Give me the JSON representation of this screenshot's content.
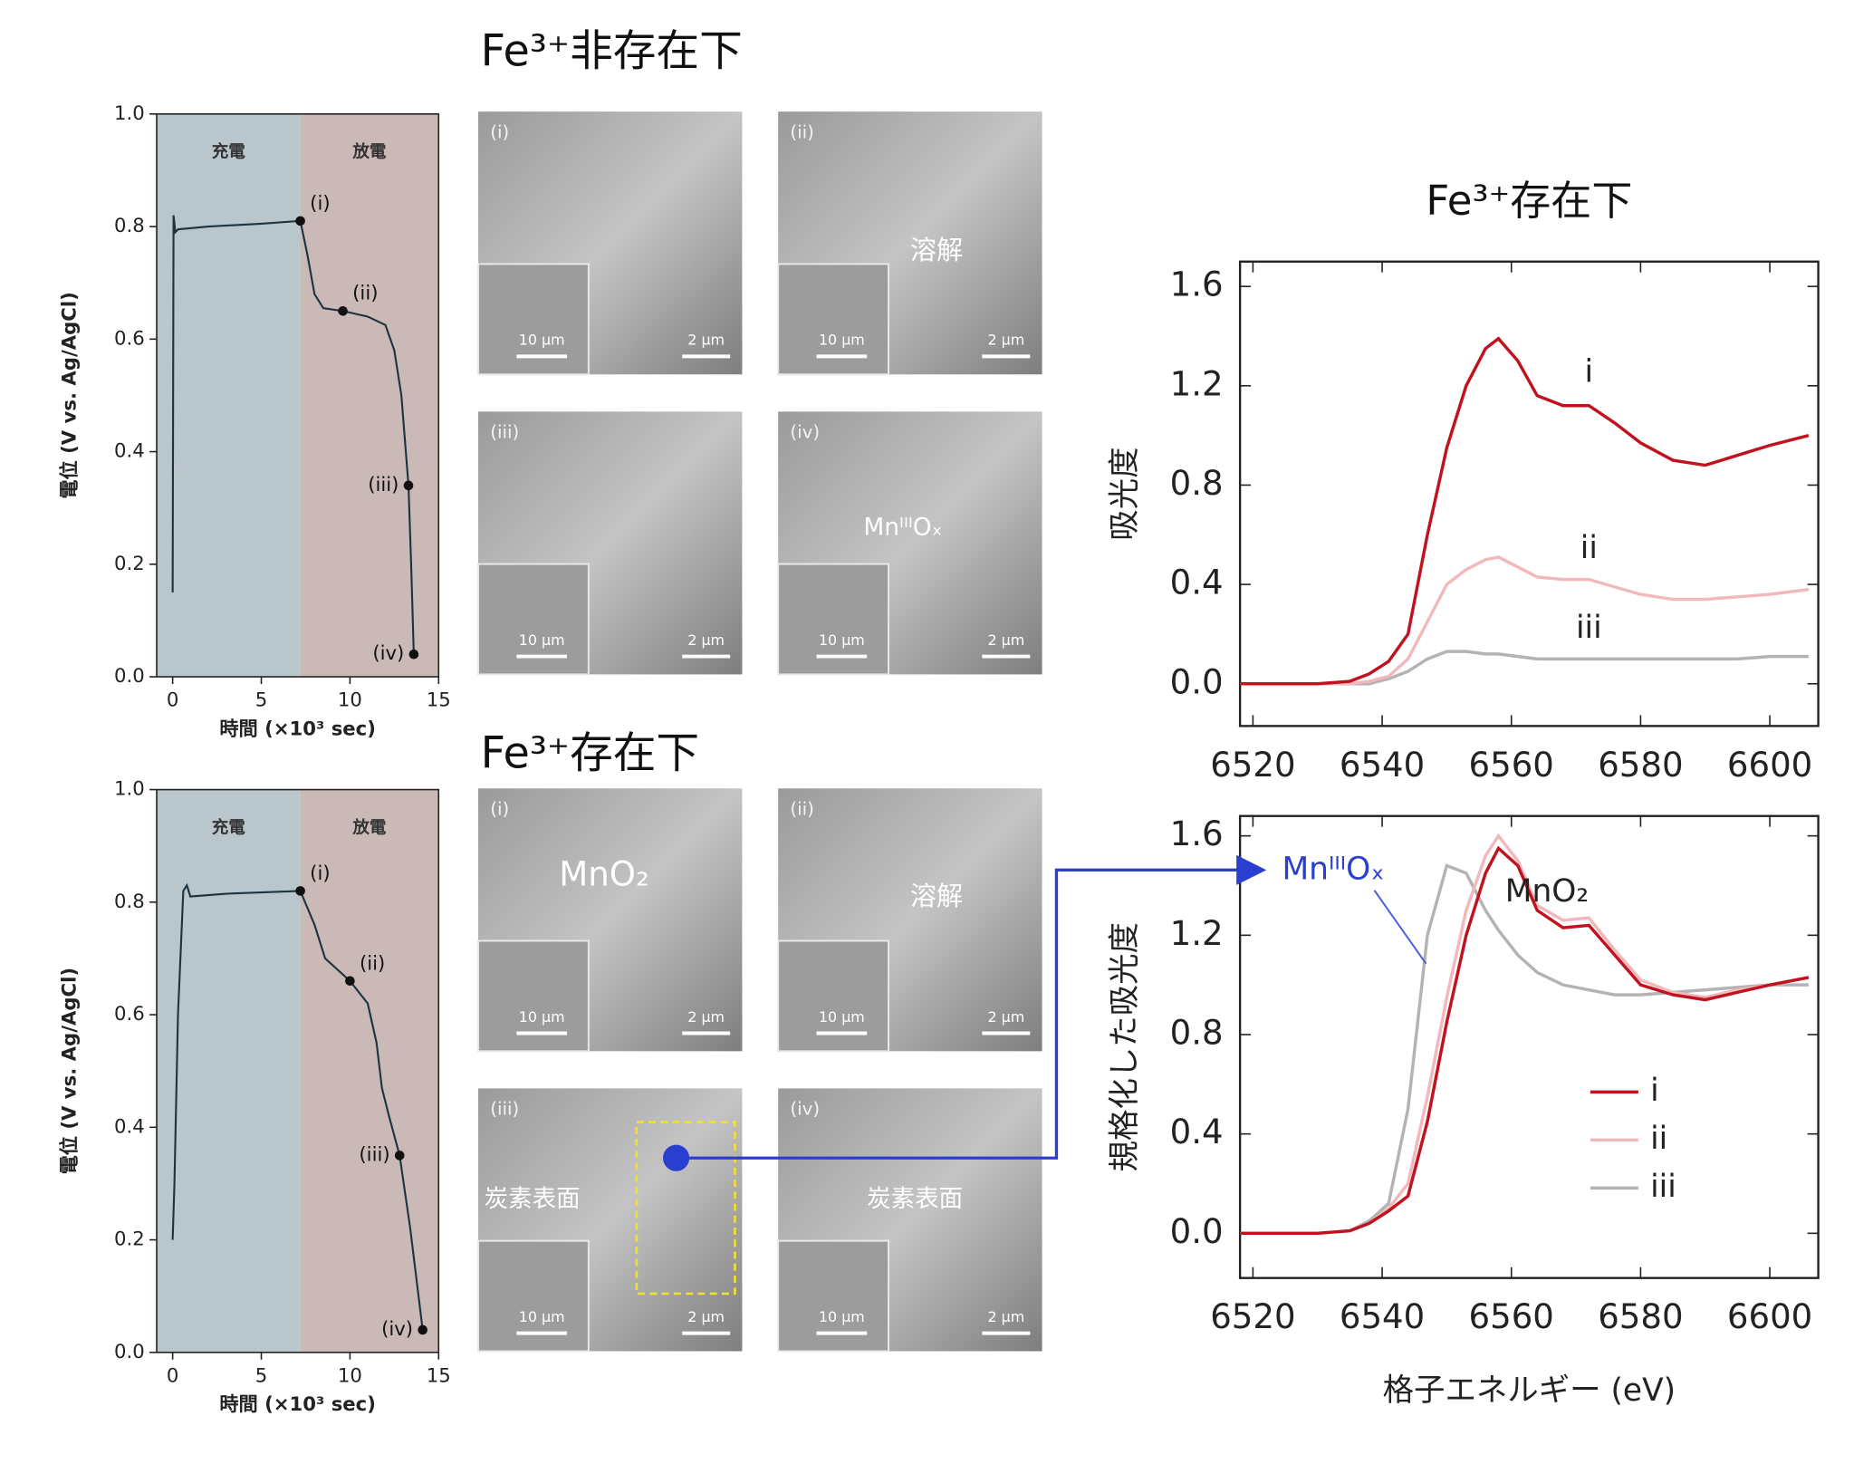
{
  "chart_data": [
    {
      "type": "line",
      "xlabel": "時間 (×10³ sec)",
      "ylabel": "電位 (V vs. Ag/AgCl)",
      "xlim": [
        -0.9,
        15
      ],
      "ylim": [
        0,
        1
      ],
      "xticks": [
        0,
        5,
        10,
        15
      ],
      "yticks": [
        {
          "value": 0,
          "label": "0.0"
        },
        0.2,
        0.4,
        0.6,
        0.8,
        {
          "value": 1,
          "label": "1.0"
        }
      ],
      "regions": [
        {
          "label": "充電",
          "start": -0.9,
          "end": 7.2,
          "color": "#b9c6cb"
        },
        {
          "label": "放電",
          "start": 7.2,
          "end": 15,
          "color": "#cbb9b8"
        }
      ],
      "x": [
        0,
        0.05,
        0.15,
        0.3,
        2,
        5,
        7.2,
        7.6,
        8,
        8.5,
        9.6,
        11,
        12,
        12.5,
        12.9,
        13.1,
        13.3,
        13.45,
        13.6
      ],
      "series": [
        {
          "color": "#1d3440",
          "values": [
            0.15,
            0.82,
            0.79,
            0.795,
            0.8,
            0.805,
            0.81,
            0.75,
            0.68,
            0.655,
            0.65,
            0.64,
            0.625,
            0.58,
            0.5,
            0.42,
            0.34,
            0.2,
            0.04
          ]
        }
      ],
      "points": {
        "x": [
          7.2,
          9.6,
          13.3,
          13.6
        ],
        "y": [
          0.81,
          0.65,
          0.34,
          0.04
        ],
        "labels": [
          "(i)",
          "(ii)",
          "(iii)",
          "(iv)"
        ]
      }
    },
    {
      "type": "line",
      "xlabel": "時間 (×10³ sec)",
      "ylabel": "電位 (V vs. Ag/AgCl)",
      "xlim": [
        -0.9,
        15
      ],
      "ylim": [
        0,
        1
      ],
      "xticks": [
        0,
        5,
        10,
        15
      ],
      "yticks": [
        {
          "value": 0,
          "label": "0.0"
        },
        0.2,
        0.4,
        0.6,
        0.8,
        {
          "value": 1,
          "label": "1.0"
        }
      ],
      "regions": [
        {
          "label": "充電",
          "start": -0.9,
          "end": 7.2,
          "color": "#b9c6cb"
        },
        {
          "label": "放電",
          "start": 7.2,
          "end": 15,
          "color": "#cbb9b8"
        }
      ],
      "x": [
        0,
        0.1,
        0.3,
        0.6,
        0.8,
        1,
        3,
        7.2,
        8,
        8.6,
        10,
        11,
        11.5,
        11.8,
        12.2,
        12.8,
        13.4,
        14.1
      ],
      "series": [
        {
          "color": "#1d3440",
          "values": [
            0.2,
            0.3,
            0.6,
            0.82,
            0.83,
            0.81,
            0.815,
            0.82,
            0.76,
            0.7,
            0.66,
            0.62,
            0.55,
            0.47,
            0.42,
            0.35,
            0.22,
            0.04
          ]
        }
      ],
      "points": {
        "x": [
          7.2,
          10,
          12.8,
          14.1
        ],
        "y": [
          0.82,
          0.66,
          0.35,
          0.04
        ],
        "labels": [
          "(i)",
          "(ii)",
          "(iii)",
          "(iv)"
        ]
      }
    },
    {
      "type": "line",
      "title": "Fe³⁺存在下",
      "ylabel": "吸光度",
      "xlim": [
        6518,
        6607.5
      ],
      "ylim": [
        -0.17,
        1.7
      ],
      "xticks": [
        6520,
        6540,
        6560,
        6580,
        6600
      ],
      "yticks": [
        {
          "value": 0,
          "label": "0.0"
        },
        0.4,
        0.8,
        1.2,
        1.6
      ],
      "x": [
        6518,
        6525,
        6530,
        6535,
        6538,
        6541,
        6544,
        6547,
        6550,
        6553,
        6556,
        6558,
        6561,
        6564,
        6568,
        6572,
        6576,
        6580,
        6585,
        6590,
        6595,
        6600,
        6606
      ],
      "series": [
        {
          "color": "#c0121f",
          "values": [
            0,
            0,
            0,
            0.01,
            0.04,
            0.09,
            0.2,
            0.6,
            0.95,
            1.2,
            1.35,
            1.39,
            1.3,
            1.16,
            1.12,
            1.12,
            1.05,
            0.97,
            0.9,
            0.88,
            0.92,
            0.96,
            1.0
          ]
        },
        {
          "color": "#f2b8bb",
          "values": [
            0,
            0,
            0,
            0,
            0.01,
            0.03,
            0.1,
            0.25,
            0.4,
            0.46,
            0.5,
            0.51,
            0.47,
            0.43,
            0.42,
            0.42,
            0.39,
            0.36,
            0.34,
            0.34,
            0.35,
            0.36,
            0.38
          ]
        },
        {
          "color": "#b3b3b3",
          "values": [
            0,
            0,
            0,
            0,
            0,
            0.02,
            0.05,
            0.1,
            0.13,
            0.13,
            0.12,
            0.12,
            0.11,
            0.1,
            0.1,
            0.1,
            0.1,
            0.1,
            0.1,
            0.1,
            0.1,
            0.11,
            0.11
          ]
        }
      ],
      "annotations": [
        {
          "text": "i",
          "x": 6572,
          "y": 1.25
        },
        {
          "text": "ii",
          "x": 6572,
          "y": 0.54
        },
        {
          "text": "iii",
          "x": 6572,
          "y": 0.22
        }
      ]
    },
    {
      "type": "line",
      "ylabel": "規格化した吸光度",
      "xlabel": "格子エネルギー (eV)",
      "legend": "lower right",
      "xlim": [
        6518,
        6607.5
      ],
      "ylim": [
        -0.18,
        1.68
      ],
      "xticks": [
        6520,
        6540,
        6560,
        6580,
        6600
      ],
      "yticks": [
        {
          "value": 0,
          "label": "0.0"
        },
        0.4,
        0.8,
        1.2,
        1.6
      ],
      "x": [
        6518,
        6525,
        6530,
        6535,
        6538,
        6541,
        6544,
        6547,
        6550,
        6553,
        6556,
        6558,
        6561,
        6564,
        6568,
        6572,
        6576,
        6580,
        6585,
        6590,
        6595,
        6600,
        6606
      ],
      "series": [
        {
          "name": "i",
          "color": "#c0121f",
          "values": [
            0,
            0,
            0,
            0.01,
            0.04,
            0.09,
            0.15,
            0.45,
            0.85,
            1.2,
            1.45,
            1.55,
            1.48,
            1.3,
            1.23,
            1.24,
            1.12,
            1.0,
            0.96,
            0.94,
            0.97,
            1.0,
            1.03
          ]
        },
        {
          "name": "ii",
          "color": "#f2b8bb",
          "values": [
            0,
            0,
            0,
            0.01,
            0.04,
            0.1,
            0.2,
            0.55,
            0.95,
            1.3,
            1.52,
            1.6,
            1.5,
            1.32,
            1.26,
            1.27,
            1.14,
            1.02,
            0.97,
            0.95,
            0.98,
            1.0,
            1.03
          ]
        },
        {
          "name": "iii",
          "color": "#b3b3b3",
          "values": [
            0,
            0,
            0,
            0.01,
            0.05,
            0.12,
            0.5,
            1.2,
            1.48,
            1.45,
            1.3,
            1.22,
            1.12,
            1.05,
            1.0,
            0.98,
            0.96,
            0.96,
            0.97,
            0.98,
            0.99,
            1.0,
            1.0
          ]
        }
      ],
      "annotations": [
        {
          "text": "MnᴵᴵᴵOₓ",
          "x": 6524.5,
          "y": 1.46,
          "color": "#2a3fd0"
        },
        {
          "text": "MnO₂",
          "x": 6565.5,
          "y": 1.37
        }
      ]
    }
  ],
  "sem_panels": [
    {
      "title": "Fe³⁺非存在下",
      "panels": [
        {
          "label": "(i)",
          "scale": "2 µm",
          "inset_scale": "10 µm"
        },
        {
          "label": "(ii)",
          "scale": "2 µm",
          "inset_scale": "10 µm",
          "note": "溶解"
        },
        {
          "label": "(iii)",
          "scale": "2 µm",
          "inset_scale": "10 µm"
        },
        {
          "label": "(iv)",
          "scale": "2 µm",
          "inset_scale": "10 µm",
          "note": "MnᴵᴵᴵOₓ"
        }
      ]
    },
    {
      "title": "Fe³⁺存在下",
      "panels": [
        {
          "label": "(i)",
          "scale": "2 µm",
          "inset_scale": "10 µm",
          "note": "MnO₂"
        },
        {
          "label": "(ii)",
          "scale": "2 µm",
          "inset_scale": "10 µm",
          "note": "溶解"
        },
        {
          "label": "(iii)",
          "scale": "2 µm",
          "inset_scale": "10 µm",
          "note": "炭素表面"
        },
        {
          "label": "(iv)",
          "scale": "2 µm",
          "inset_scale": "10 µm",
          "note": "炭素表面"
        }
      ]
    }
  ]
}
